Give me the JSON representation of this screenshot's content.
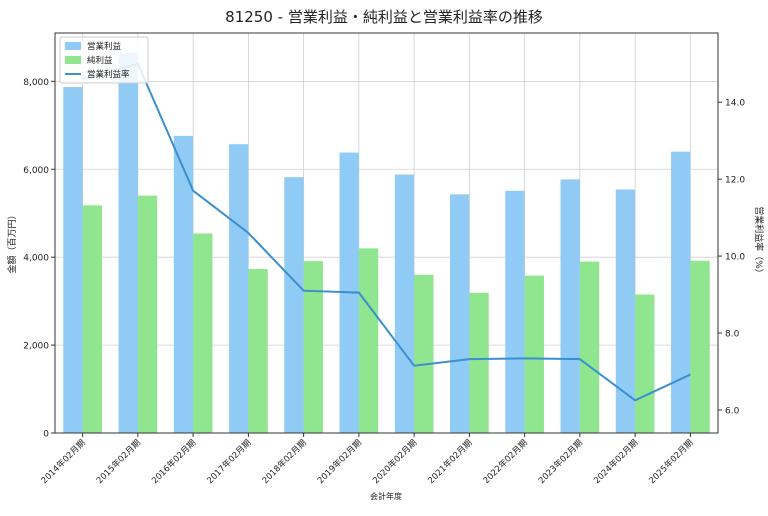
{
  "chart_data": {
    "type": "bar",
    "title": "81250 - 営業利益・純利益と営業利益率の推移",
    "xlabel": "会計年度",
    "ylabel_left": "金額（百万円）",
    "ylabel_right": "営業利益率（%）",
    "categories": [
      "2014年02月期",
      "2015年02月期",
      "2016年02月期",
      "2017年02月期",
      "2018年02月期",
      "2019年02月期",
      "2020年02月期",
      "2021年02月期",
      "2022年02月期",
      "2023年02月期",
      "2024年02月期",
      "2025年02月期"
    ],
    "ylim_left": [
      0,
      9100
    ],
    "yticks_left": [
      0,
      2000,
      4000,
      6000,
      8000
    ],
    "ytick_labels_left": [
      "0",
      "2,000",
      "4,000",
      "6,000",
      "8,000"
    ],
    "ylim_right": [
      5.4,
      15.8
    ],
    "yticks_right": [
      6.0,
      8.0,
      10.0,
      12.0,
      14.0
    ],
    "ytick_labels_right": [
      "6.0",
      "8.0",
      "10.0",
      "12.0",
      "14.0"
    ],
    "grid": true,
    "legend_position": "top-left",
    "series": [
      {
        "name": "営業利益",
        "kind": "bar",
        "axis": "left",
        "color": "#90cbf5",
        "values": [
          7870,
          8650,
          6760,
          6570,
          5820,
          6380,
          5880,
          5430,
          5510,
          5770,
          5540,
          6400
        ]
      },
      {
        "name": "純利益",
        "kind": "bar",
        "axis": "left",
        "color": "#90e58f",
        "values": [
          5180,
          5400,
          4540,
          3730,
          3910,
          4200,
          3600,
          3190,
          3580,
          3900,
          3150,
          3920
        ]
      },
      {
        "name": "営業利益率",
        "kind": "line",
        "axis": "right",
        "color": "#3a8fd0",
        "values": [
          14.6,
          15.0,
          11.7,
          10.6,
          9.1,
          9.05,
          7.15,
          7.32,
          7.34,
          7.32,
          6.25,
          6.92
        ]
      }
    ]
  }
}
